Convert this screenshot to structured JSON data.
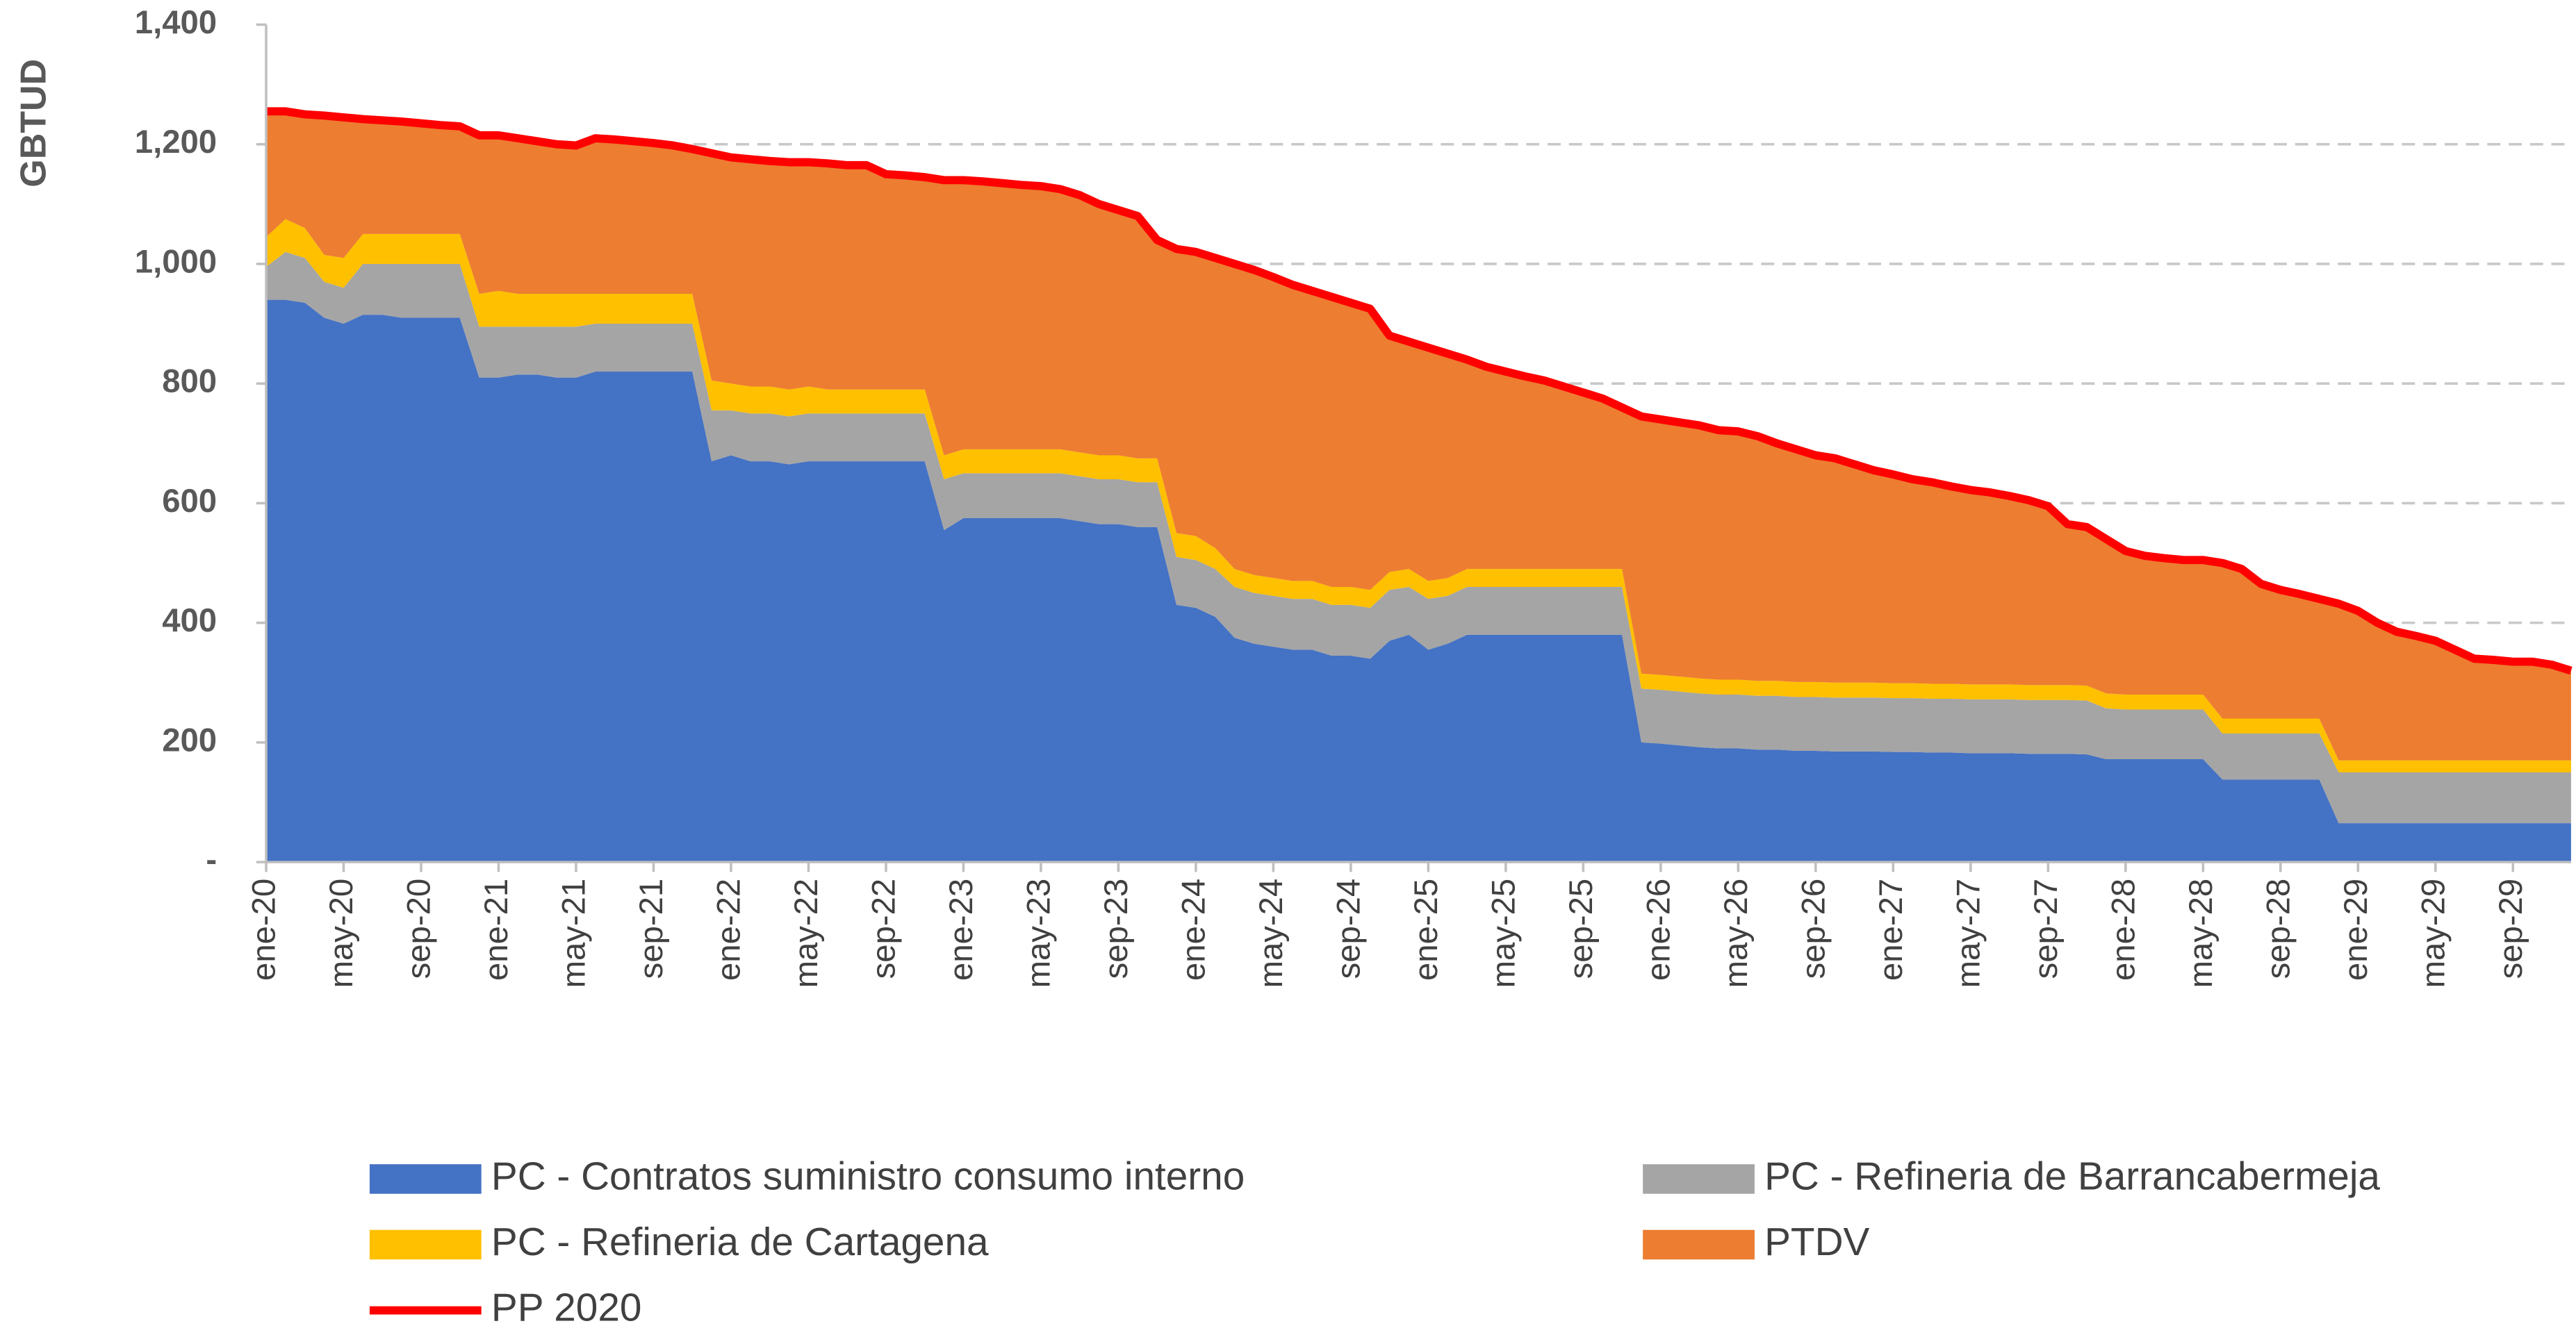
{
  "chart_data": {
    "type": "area",
    "stacked": true,
    "ylabel": "GBTUD",
    "categories": [
      "ene-20",
      null,
      null,
      null,
      "may-20",
      null,
      null,
      null,
      "sep-20",
      null,
      null,
      null,
      "ene-21",
      null,
      null,
      null,
      "may-21",
      null,
      null,
      null,
      "sep-21",
      null,
      null,
      null,
      "ene-22",
      null,
      null,
      null,
      "may-22",
      null,
      null,
      null,
      "sep-22",
      null,
      null,
      null,
      "ene-23",
      null,
      null,
      null,
      "may-23",
      null,
      null,
      null,
      "sep-23",
      null,
      null,
      null,
      "ene-24",
      null,
      null,
      null,
      "may-24",
      null,
      null,
      null,
      "sep-24",
      null,
      null,
      null,
      "ene-25",
      null,
      null,
      null,
      "may-25",
      null,
      null,
      null,
      "sep-25",
      null,
      null,
      null,
      "ene-26",
      null,
      null,
      null,
      "may-26",
      null,
      null,
      null,
      "sep-26",
      null,
      null,
      null,
      "ene-27",
      null,
      null,
      null,
      "may-27",
      null,
      null,
      null,
      "sep-27",
      null,
      null,
      null,
      "ene-28",
      null,
      null,
      null,
      "may-28",
      null,
      null,
      null,
      "sep-28",
      null,
      null,
      null,
      "ene-29",
      null,
      null,
      null,
      "may-29",
      null,
      null,
      null,
      "sep-29",
      null,
      null,
      null
    ],
    "series": [
      {
        "name": "PC - Contratos suministro consumo interno",
        "type": "area",
        "color": "#4472c4",
        "values": [
          940,
          940,
          935,
          910,
          900,
          915,
          915,
          910,
          910,
          910,
          910,
          810,
          810,
          815,
          815,
          810,
          810,
          820,
          820,
          820,
          820,
          820,
          820,
          670,
          680,
          670,
          670,
          665,
          670,
          670,
          670,
          670,
          670,
          670,
          670,
          555,
          575,
          575,
          575,
          575,
          575,
          575,
          570,
          565,
          565,
          560,
          560,
          430,
          425,
          410,
          375,
          365,
          360,
          355,
          355,
          345,
          345,
          340,
          370,
          380,
          355,
          365,
          380,
          380,
          380,
          380,
          380,
          380,
          380,
          380,
          380,
          200,
          198,
          195,
          192,
          190,
          190,
          188,
          188,
          186,
          186,
          185,
          185,
          185,
          184,
          184,
          183,
          183,
          182,
          182,
          182,
          181,
          181,
          181,
          180,
          172,
          172,
          172,
          172,
          172,
          172,
          138,
          138,
          138,
          138,
          138,
          138,
          65,
          65,
          65,
          65,
          65,
          65,
          65,
          65,
          65,
          65,
          65,
          65,
          65
        ]
      },
      {
        "name": "PC - Refineria de Barrancabermeja",
        "type": "area",
        "color": "#a5a5a5",
        "values": [
          55,
          80,
          75,
          60,
          60,
          85,
          85,
          90,
          90,
          90,
          90,
          85,
          85,
          80,
          80,
          85,
          85,
          80,
          80,
          80,
          80,
          80,
          80,
          85,
          75,
          80,
          80,
          80,
          80,
          80,
          80,
          80,
          80,
          80,
          80,
          85,
          75,
          75,
          75,
          75,
          75,
          75,
          75,
          75,
          75,
          75,
          75,
          80,
          80,
          80,
          85,
          85,
          85,
          85,
          85,
          85,
          85,
          85,
          85,
          80,
          85,
          80,
          80,
          80,
          80,
          80,
          80,
          80,
          80,
          80,
          80,
          90,
          90,
          90,
          90,
          90,
          90,
          90,
          90,
          90,
          90,
          90,
          90,
          90,
          90,
          90,
          90,
          90,
          90,
          90,
          90,
          90,
          90,
          90,
          90,
          85,
          83,
          83,
          83,
          83,
          83,
          77,
          77,
          77,
          77,
          77,
          77,
          85,
          85,
          85,
          85,
          85,
          85,
          85,
          85,
          85,
          85,
          85,
          85,
          85
        ]
      },
      {
        "name": "PC - Refineria de Cartagena",
        "type": "area",
        "color": "#ffc000",
        "values": [
          50,
          55,
          50,
          45,
          50,
          50,
          50,
          50,
          50,
          50,
          50,
          55,
          60,
          55,
          55,
          55,
          55,
          50,
          50,
          50,
          50,
          50,
          50,
          50,
          45,
          45,
          45,
          45,
          45,
          40,
          40,
          40,
          40,
          40,
          40,
          40,
          40,
          40,
          40,
          40,
          40,
          40,
          40,
          40,
          40,
          40,
          40,
          40,
          40,
          35,
          30,
          30,
          30,
          30,
          30,
          30,
          30,
          30,
          30,
          30,
          30,
          30,
          30,
          30,
          30,
          30,
          30,
          30,
          30,
          30,
          30,
          25,
          25,
          25,
          25,
          25,
          25,
          25,
          25,
          25,
          25,
          25,
          25,
          25,
          25,
          25,
          25,
          25,
          25,
          25,
          25,
          25,
          25,
          25,
          25,
          25,
          25,
          25,
          25,
          25,
          25,
          25,
          25,
          25,
          25,
          25,
          25,
          20,
          20,
          20,
          20,
          20,
          20,
          20,
          20,
          20,
          20,
          20,
          20,
          20
        ]
      },
      {
        "name": "PTDV",
        "type": "area",
        "color": "#ed7d31",
        "values": [
          210,
          180,
          190,
          233,
          235,
          192,
          190,
          188,
          185,
          182,
          180,
          265,
          260,
          260,
          255,
          250,
          248,
          260,
          258,
          255,
          252,
          248,
          242,
          380,
          378,
          380,
          377,
          380,
          375,
          378,
          375,
          375,
          360,
          358,
          355,
          460,
          450,
          448,
          445,
          442,
          440,
          435,
          430,
          420,
          410,
          405,
          365,
          475,
          475,
          485,
          510,
          510,
          503,
          495,
          485,
          485,
          475,
          470,
          395,
          380,
          390,
          375,
          350,
          338,
          330,
          322,
          315,
          305,
          295,
          285,
          270,
          430,
          427,
          425,
          423,
          417,
          415,
          409,
          397,
          389,
          379,
          375,
          365,
          355,
          349,
          341,
          337,
          330,
          325,
          321,
          315,
          309,
          299,
          269,
          265,
          258,
          240,
          232,
          228,
          225,
          225,
          260,
          250,
          225,
          215,
          208,
          200,
          262,
          250,
          230,
          215,
          208,
          200,
          185,
          170,
          168,
          165,
          165,
          160,
          150
        ]
      },
      {
        "name": "PP 2020",
        "type": "line",
        "color": "#ff0000",
        "values": [
          1255,
          1255,
          1250,
          1248,
          1245,
          1242,
          1240,
          1238,
          1235,
          1232,
          1230,
          1215,
          1215,
          1210,
          1205,
          1200,
          1198,
          1210,
          1208,
          1205,
          1202,
          1198,
          1192,
          1185,
          1178,
          1175,
          1172,
          1170,
          1170,
          1168,
          1165,
          1165,
          1150,
          1148,
          1145,
          1140,
          1140,
          1138,
          1135,
          1132,
          1130,
          1125,
          1115,
          1100,
          1090,
          1080,
          1040,
          1025,
          1020,
          1010,
          1000,
          990,
          978,
          965,
          955,
          945,
          935,
          925,
          880,
          870,
          860,
          850,
          840,
          828,
          820,
          812,
          805,
          795,
          785,
          775,
          760,
          745,
          740,
          735,
          730,
          722,
          720,
          712,
          700,
          690,
          680,
          675,
          665,
          655,
          648,
          640,
          635,
          628,
          622,
          618,
          612,
          605,
          595,
          565,
          560,
          540,
          520,
          512,
          508,
          505,
          505,
          500,
          490,
          465,
          455,
          448,
          440,
          432,
          420,
          400,
          385,
          378,
          370,
          355,
          340,
          338,
          335,
          335,
          330,
          320
        ]
      }
    ],
    "ylim": [
      0,
      1400
    ],
    "yticks": [
      {
        "value": 0,
        "label": "-"
      },
      200,
      400,
      600,
      800,
      {
        "value": 1000,
        "label": "1,000"
      },
      {
        "value": 1200,
        "label": "1,200"
      },
      {
        "value": 1400,
        "label": "1,400"
      }
    ],
    "grid": true,
    "legend": "bottom"
  }
}
